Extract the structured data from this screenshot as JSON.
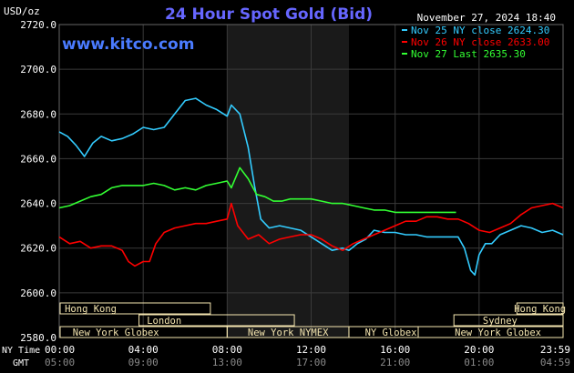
{
  "header": {
    "title": "24 Hour Spot Gold (Bid)",
    "timestamp": "November 27, 2024 18:40",
    "website": "www.kitco.com",
    "y_unit": "USD/oz"
  },
  "legend": [
    {
      "text": "Nov 25 NY close 2624.30",
      "color": "#33ccff"
    },
    {
      "text": "Nov 26 NY close 2633.00",
      "color": "#ff0000"
    },
    {
      "text": "Nov 27 Last 2635.30",
      "color": "#33ff33"
    }
  ],
  "axis_labels": {
    "ny_time": "NY Time",
    "gmt": "GMT"
  },
  "x_ticks_ny": [
    "00:00",
    "04:00",
    "08:00",
    "12:00",
    "16:00",
    "20:00",
    "23:59"
  ],
  "x_ticks_gmt": [
    "05:00",
    "09:00",
    "13:00",
    "17:00",
    "21:00",
    "01:00",
    "04:59"
  ],
  "sessions": [
    {
      "name": "Hong Kong",
      "row": 0
    },
    {
      "name": "Hong Kong",
      "row": 0
    },
    {
      "name": "London",
      "row": 1
    },
    {
      "name": "Sydney",
      "row": 1
    },
    {
      "name": "New York Globex",
      "row": 2
    },
    {
      "name": "New York NYMEX",
      "row": 2
    },
    {
      "name": "NY Globex",
      "row": 2
    },
    {
      "name": "New York Globex",
      "row": 2
    }
  ],
  "colors": {
    "background": "#000000",
    "shaded_region": "#1a1a1a",
    "title": "#6666ff",
    "website": "#4a7bff",
    "session_box": "#f5e6b0",
    "text": "#ffffff"
  },
  "chart_data": {
    "type": "line",
    "title": "24 Hour Spot Gold (Bid)",
    "ylabel": "USD/oz",
    "xlabel": "",
    "x_unit": "hours (NY time)",
    "xlim": [
      0,
      24
    ],
    "ylim": [
      2580,
      2720
    ],
    "y_ticks": [
      2580,
      2600,
      2620,
      2640,
      2660,
      2680,
      2700,
      2720
    ],
    "grid": true,
    "legend_position": "top-right",
    "shaded_x_range": [
      8,
      13.8
    ],
    "series": [
      {
        "name": "Nov 25 NY close 2624.30",
        "color": "#33ccff",
        "x": [
          0,
          0.4,
          0.8,
          1.2,
          1.6,
          2.0,
          2.5,
          3.0,
          3.5,
          4.0,
          4.5,
          5.0,
          5.5,
          6.0,
          6.5,
          7.0,
          7.5,
          8.0,
          8.2,
          8.6,
          9.0,
          9.3,
          9.6,
          10.0,
          10.5,
          11.0,
          11.5,
          12.0,
          12.5,
          13.0,
          13.5,
          13.8,
          14.2,
          14.6,
          15.0,
          15.5,
          16.0,
          16.5,
          17.0,
          17.5,
          18.0,
          18.5,
          19.0,
          19.3,
          19.6,
          19.8,
          20.0,
          20.3,
          20.6,
          21.0,
          21.5,
          22.0,
          22.5,
          23.0,
          23.5,
          24.0
        ],
        "y": [
          2672,
          2670,
          2666,
          2661,
          2667,
          2670,
          2668,
          2669,
          2671,
          2674,
          2673,
          2674,
          2680,
          2686,
          2687,
          2684,
          2682,
          2679,
          2684,
          2680,
          2665,
          2648,
          2633,
          2629,
          2630,
          2629,
          2628,
          2625,
          2622,
          2619,
          2620,
          2619,
          2622,
          2624,
          2628,
          2627,
          2627,
          2626,
          2626,
          2625,
          2625,
          2625,
          2625,
          2620,
          2610,
          2608,
          2617,
          2622,
          2622,
          2626,
          2628,
          2630,
          2629,
          2627,
          2628,
          2626
        ]
      },
      {
        "name": "Nov 26 NY close 2633.00",
        "color": "#ff0000",
        "x": [
          0,
          0.5,
          1.0,
          1.5,
          2.0,
          2.5,
          3.0,
          3.3,
          3.6,
          4.0,
          4.3,
          4.6,
          5.0,
          5.5,
          6.0,
          6.5,
          7.0,
          7.5,
          8.0,
          8.2,
          8.5,
          9.0,
          9.5,
          10.0,
          10.5,
          11.0,
          11.5,
          12.0,
          12.5,
          13.0,
          13.5,
          14.0,
          14.5,
          15.0,
          15.5,
          16.0,
          16.5,
          17.0,
          17.5,
          18.0,
          18.5,
          19.0,
          19.5,
          20.0,
          20.5,
          21.0,
          21.5,
          22.0,
          22.5,
          23.0,
          23.5,
          24.0
        ],
        "y": [
          2625,
          2622,
          2623,
          2620,
          2621,
          2621,
          2619,
          2614,
          2612,
          2614,
          2614,
          2622,
          2627,
          2629,
          2630,
          2631,
          2631,
          2632,
          2633,
          2640,
          2630,
          2624,
          2626,
          2622,
          2624,
          2625,
          2626,
          2626,
          2624,
          2621,
          2619,
          2622,
          2624,
          2626,
          2628,
          2630,
          2632,
          2632,
          2634,
          2634,
          2633,
          2633,
          2631,
          2628,
          2627,
          2629,
          2631,
          2635,
          2638,
          2639,
          2640,
          2638
        ]
      },
      {
        "name": "Nov 27 Last 2635.30",
        "color": "#33ff33",
        "x": [
          0,
          0.5,
          1.0,
          1.5,
          2.0,
          2.5,
          3.0,
          3.5,
          4.0,
          4.5,
          5.0,
          5.5,
          6.0,
          6.5,
          7.0,
          7.5,
          8.0,
          8.2,
          8.6,
          9.0,
          9.4,
          9.8,
          10.2,
          10.6,
          11.0,
          11.5,
          12.0,
          12.5,
          13.0,
          13.5,
          14.0,
          14.5,
          15.0,
          15.5,
          16.0,
          16.5,
          17.0,
          17.5,
          18.0,
          18.5,
          18.9
        ],
        "y": [
          2638,
          2639,
          2641,
          2643,
          2644,
          2647,
          2648,
          2648,
          2648,
          2649,
          2648,
          2646,
          2647,
          2646,
          2648,
          2649,
          2650,
          2647,
          2656,
          2651,
          2644,
          2643,
          2641,
          2641,
          2642,
          2642,
          2642,
          2641,
          2640,
          2640,
          2639,
          2638,
          2637,
          2637,
          2636,
          2636,
          2636,
          2636,
          2636,
          2636,
          2636
        ]
      }
    ]
  }
}
